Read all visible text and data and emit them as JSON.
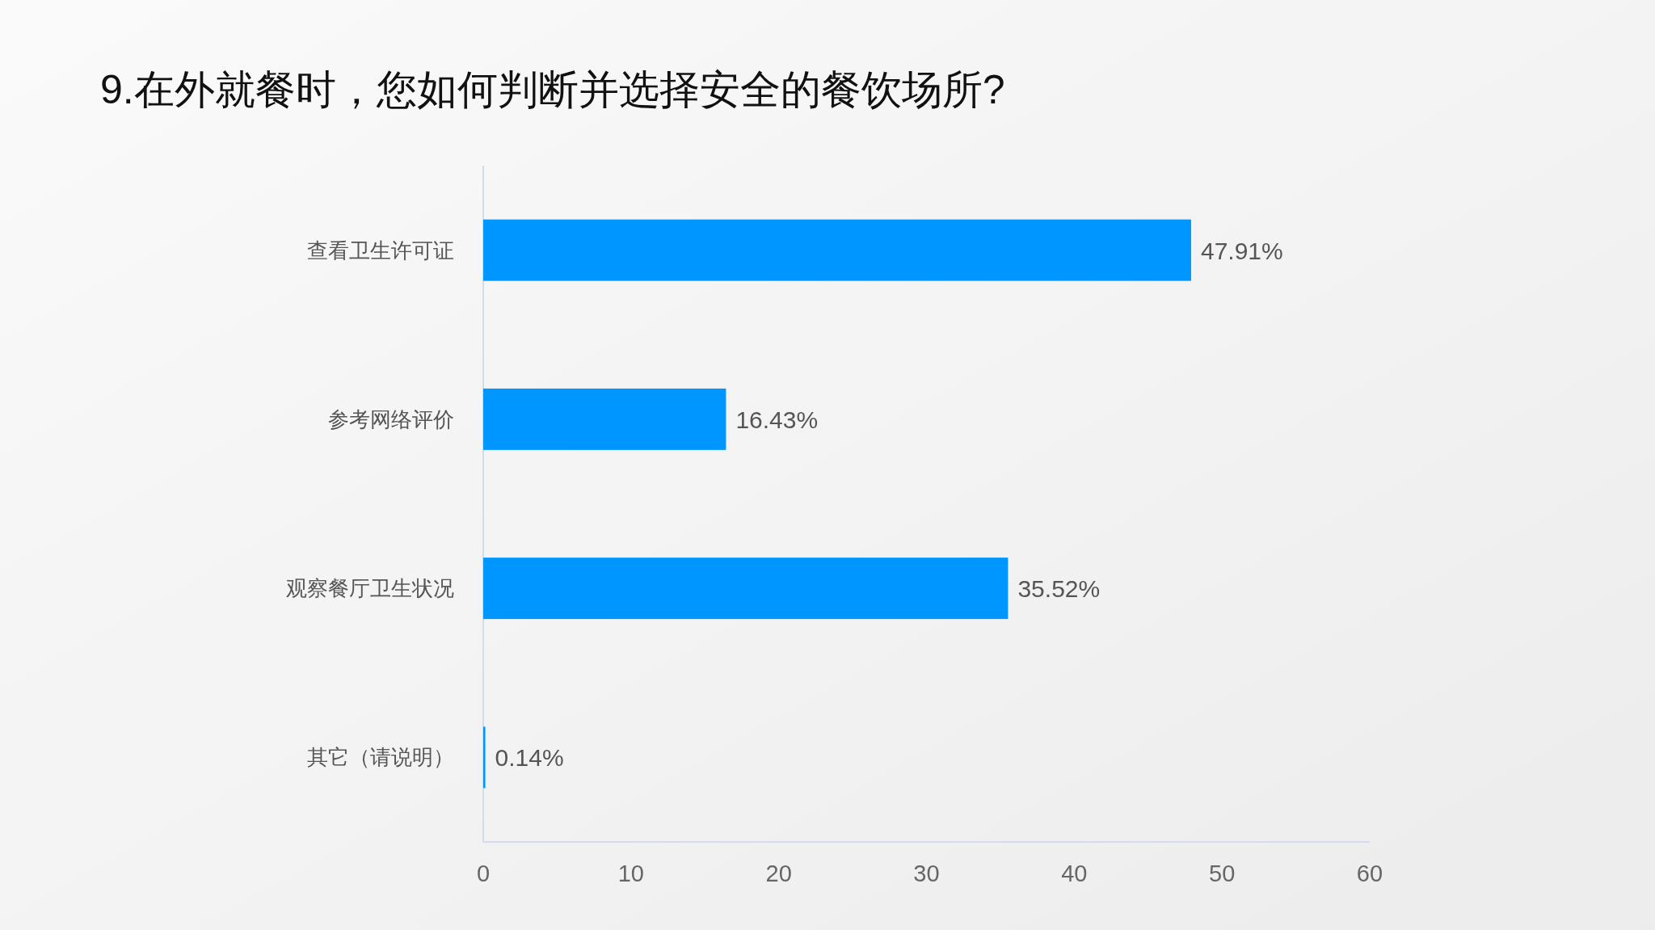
{
  "chart_data": {
    "type": "bar",
    "orientation": "horizontal",
    "title": "9.在外就餐时，您如何判断并选择安全的餐饮场所?",
    "categories": [
      "查看卫生许可证",
      "参考网络评价",
      "观察餐厅卫生状况",
      "其它（请说明）"
    ],
    "values": [
      47.91,
      16.43,
      35.52,
      0.14
    ],
    "value_labels": [
      "47.91%",
      "16.43%",
      "35.52%",
      "0.14%"
    ],
    "color": "#0096ff",
    "xlim": [
      0,
      60
    ],
    "xticks": [
      0,
      10,
      20,
      30,
      40,
      50,
      60
    ]
  }
}
